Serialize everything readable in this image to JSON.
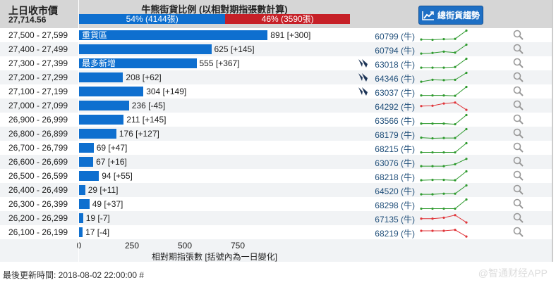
{
  "header": {
    "last_close_label": "上日收市價",
    "last_close_value": "27,714.56",
    "ratio_title": "牛熊街貨比例 (以相對期指張數計算)",
    "bull_label": "54% (4144張)",
    "bear_label": "46% (3590張)",
    "bull_pct": 54,
    "trend_button": "總街貨趨勢"
  },
  "colors": {
    "bar": "#0e6fcf",
    "bull": "#0e6fcf",
    "bear": "#c62027",
    "up_line": "#2e9a2e",
    "down_line": "#e0353a",
    "code": "#1f4e79"
  },
  "chart_data": {
    "type": "bar",
    "orientation": "horizontal",
    "xlabel": "相對期指張數 [括號內為一日變化]",
    "xlim": [
      0,
      1280
    ],
    "xticks": [
      0,
      250,
      500,
      750
    ],
    "rows": [
      {
        "range": "27,500 - 27,599",
        "value": 891,
        "change": "+300",
        "label": "891 [+300]",
        "tag": "重貨區",
        "code": "60799 (牛)",
        "cbbc_icon": false,
        "trend": [
          2,
          1,
          3,
          4,
          30
        ],
        "trend_dir": "up"
      },
      {
        "range": "27,400 - 27,499",
        "value": 625,
        "change": "+145",
        "label": "625 [+145]",
        "tag": "",
        "code": "60794 (牛)",
        "cbbc_icon": false,
        "trend": [
          2,
          4,
          8,
          5,
          30
        ],
        "trend_dir": "up"
      },
      {
        "range": "27,300 - 27,399",
        "value": 555,
        "change": "+367",
        "label": "555 [+367]",
        "tag": "最多新增",
        "code": "63018 (牛)",
        "cbbc_icon": true,
        "trend": [
          2,
          2,
          2,
          4,
          30
        ],
        "trend_dir": "up"
      },
      {
        "range": "27,200 - 27,299",
        "value": 208,
        "change": "+62",
        "label": "208 [+62]",
        "tag": "",
        "code": "64346 (牛)",
        "cbbc_icon": true,
        "trend": [
          2,
          8,
          7,
          8,
          30
        ],
        "trend_dir": "up"
      },
      {
        "range": "27,100 - 27,199",
        "value": 304,
        "change": "+149",
        "label": "304 [+149]",
        "tag": "",
        "code": "63037 (牛)",
        "cbbc_icon": true,
        "trend": [
          3,
          3,
          3,
          2,
          30
        ],
        "trend_dir": "up"
      },
      {
        "range": "27,000 - 27,099",
        "value": 236,
        "change": "-45",
        "label": "236 [-45]",
        "tag": "",
        "code": "64292 (牛)",
        "cbbc_icon": false,
        "trend": [
          14,
          15,
          22,
          25,
          2
        ],
        "trend_dir": "down"
      },
      {
        "range": "26,900 - 26,999",
        "value": 211,
        "change": "+145",
        "label": "211 [+145]",
        "tag": "",
        "code": "63566 (牛)",
        "cbbc_icon": false,
        "trend": [
          3,
          3,
          3,
          1,
          30
        ],
        "trend_dir": "up"
      },
      {
        "range": "26,800 - 26,899",
        "value": 176,
        "change": "+127",
        "label": "176 [+127]",
        "tag": "",
        "code": "68179 (牛)",
        "cbbc_icon": false,
        "trend": [
          3,
          1,
          2,
          2,
          30
        ],
        "trend_dir": "up"
      },
      {
        "range": "26,700 - 26,799",
        "value": 69,
        "change": "+47",
        "label": "69 [+47]",
        "tag": "",
        "code": "68215 (牛)",
        "cbbc_icon": false,
        "trend": [
          1,
          1,
          1,
          1,
          30
        ],
        "trend_dir": "up"
      },
      {
        "range": "26,600 - 26,699",
        "value": 67,
        "change": "+16",
        "label": "67 [+16]",
        "tag": "",
        "code": "63076 (牛)",
        "cbbc_icon": false,
        "trend": [
          2,
          2,
          2,
          8,
          25
        ],
        "trend_dir": "up"
      },
      {
        "range": "26,500 - 26,599",
        "value": 94,
        "change": "+55",
        "label": "94 [+55]",
        "tag": "",
        "code": "68218 (牛)",
        "cbbc_icon": false,
        "trend": [
          2,
          3,
          3,
          2,
          30
        ],
        "trend_dir": "up"
      },
      {
        "range": "26,400 - 26,499",
        "value": 29,
        "change": "+11",
        "label": "29 [+11]",
        "tag": "",
        "code": "64520 (牛)",
        "cbbc_icon": false,
        "trend": [
          2,
          2,
          4,
          4,
          30
        ],
        "trend_dir": "up"
      },
      {
        "range": "26,300 - 26,399",
        "value": 49,
        "change": "+37",
        "label": "49 [+37]",
        "tag": "",
        "code": "68298 (牛)",
        "cbbc_icon": false,
        "trend": [
          1,
          1,
          1,
          1,
          30
        ],
        "trend_dir": "up"
      },
      {
        "range": "26,200 - 26,299",
        "value": 19,
        "change": "-7",
        "label": "19 [-7]",
        "tag": "",
        "code": "67135 (牛)",
        "cbbc_icon": false,
        "trend": [
          14,
          14,
          17,
          25,
          2
        ],
        "trend_dir": "down"
      },
      {
        "range": "26,100 - 26,199",
        "value": 17,
        "change": "-4",
        "label": "17 [-4]",
        "tag": "",
        "code": "68219 (牛)",
        "cbbc_icon": false,
        "trend": [
          20,
          20,
          20,
          23,
          2
        ],
        "trend_dir": "down"
      }
    ]
  },
  "footer": {
    "updated": "最後更新時間: 2018-08-02 22:00:00 #",
    "watermark": "@智通财经APP"
  }
}
